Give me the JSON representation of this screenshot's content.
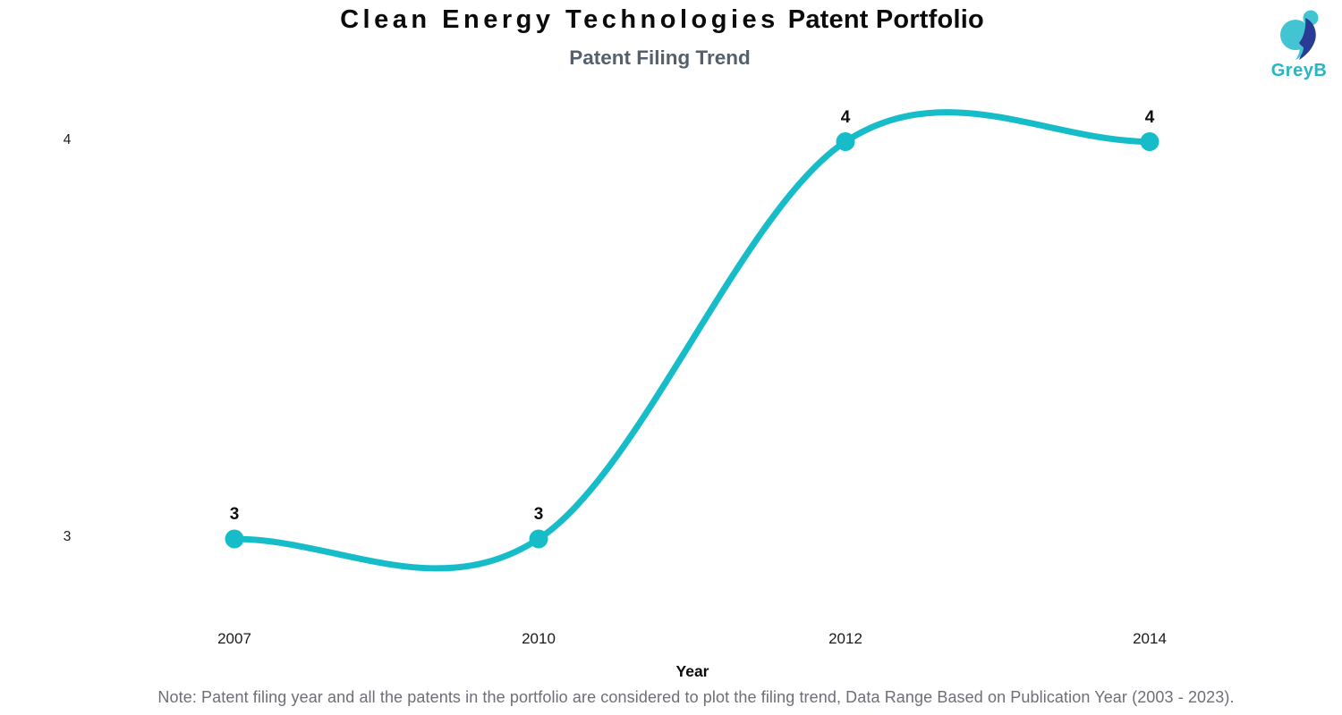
{
  "header": {
    "title_spaced": "Clean Energy Technologies",
    "title_rest": "Patent Portfolio",
    "subtitle": "Patent Filing Trend"
  },
  "logo": {
    "text": "GreyB"
  },
  "chart_data": {
    "type": "line",
    "title": "Patent Filing Trend",
    "categories": [
      "2007",
      "2010",
      "2012",
      "2014"
    ],
    "values": [
      3,
      3,
      4,
      4
    ],
    "xlabel": "Year",
    "ylabel": "",
    "yticks": [
      3,
      4
    ],
    "ylim": [
      3,
      4
    ],
    "grid": false,
    "legend": "none",
    "line_color": "#17bcc9",
    "point_color": "#17bcc9",
    "curve": "smooth"
  },
  "footer": {
    "note": "Note: Patent filing year and all the patents in the portfolio are considered to plot the filing trend, Data Range Based on Publication Year (2003 - 2023)."
  }
}
